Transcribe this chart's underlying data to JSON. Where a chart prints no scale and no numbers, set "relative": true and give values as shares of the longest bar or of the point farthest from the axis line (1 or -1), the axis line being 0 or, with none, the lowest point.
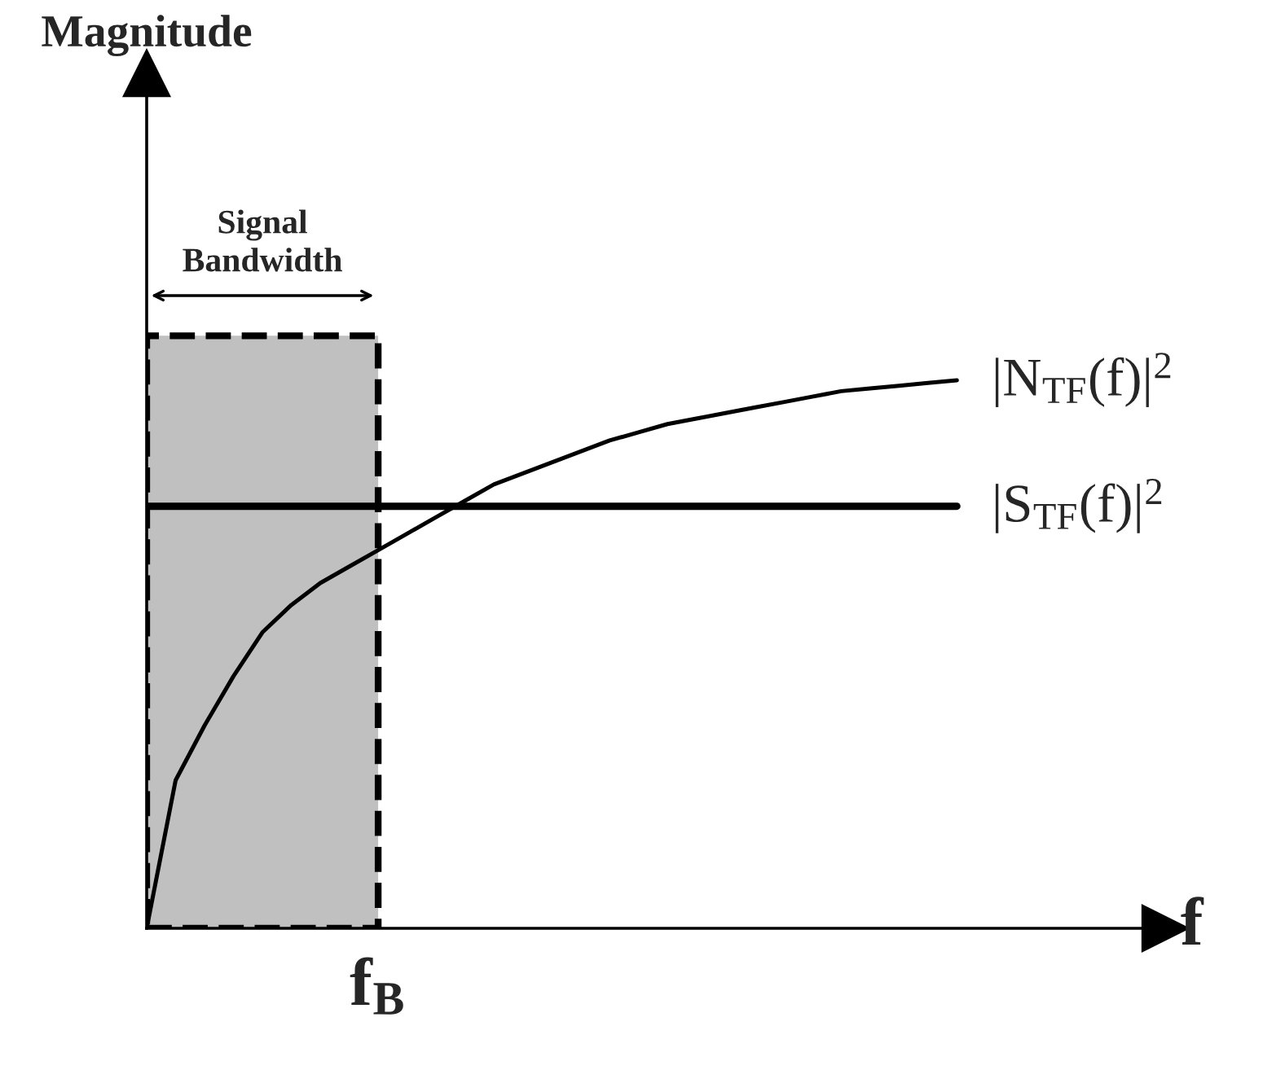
{
  "chart_data": {
    "type": "line",
    "relative": true,
    "xlabel": "f",
    "categories": [
      null,
      null,
      null,
      null,
      null,
      null,
      null,
      null,
      null,
      null,
      null,
      null,
      null,
      null,
      null,
      null,
      null,
      null,
      null,
      null,
      null,
      null,
      null,
      null,
      null,
      null,
      null,
      null,
      null
    ],
    "series": [
      {
        "name": "|N$_{TF}$(f)|$^{2}$",
        "color": "#000000",
        "values": [
          0,
          0.27,
          0.37,
          0.46,
          0.54,
          0.59,
          0.63,
          0.66,
          0.69,
          0.72,
          0.75,
          0.78,
          0.81,
          0.83,
          0.85,
          0.87,
          0.89,
          0.905,
          0.92,
          0.93,
          0.94,
          0.95,
          0.96,
          0.97,
          0.98,
          0.985,
          0.99,
          0.995,
          1.0
        ]
      },
      {
        "name": "|S$_{TF}$(f)|$^{2}$",
        "color": "#000000",
        "values": [
          0.77,
          0.77,
          0.77,
          0.77,
          0.77,
          0.77,
          0.77,
          0.77,
          0.77,
          0.77,
          0.77,
          0.77,
          0.77,
          0.77,
          0.77,
          0.77,
          0.77,
          0.77,
          0.77,
          0.77,
          0.77,
          0.77,
          0.77,
          0.77,
          0.77,
          0.77,
          0.77,
          0.77,
          0.77
        ]
      }
    ],
    "annotations": [
      "Magnitude",
      "Signal\nBandwidth",
      "f$_{B}$"
    ],
    "grid": false,
    "legend": false,
    "marker": "none",
    "line_style": "solid"
  }
}
